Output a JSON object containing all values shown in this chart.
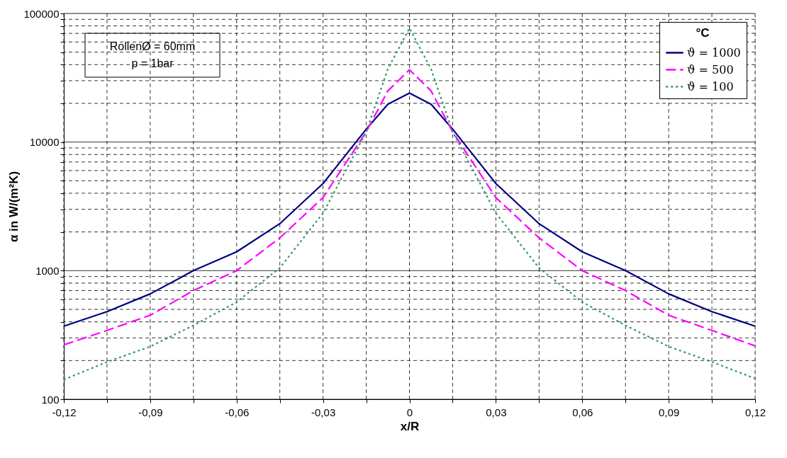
{
  "chart_data": {
    "type": "line",
    "xlabel": "x/R",
    "ylabel": "α in W/(m²K)",
    "legend_title": "°C",
    "legend": "top right",
    "log": true,
    "grid": true,
    "annotations": [
      "RollenØ = 60mm",
      "p = 1bar"
    ],
    "x": [
      -0.12,
      -0.105,
      -0.09,
      -0.075,
      -0.06,
      -0.045,
      -0.03,
      -0.015,
      -0.0075,
      0,
      0.0075,
      0.015,
      0.03,
      0.045,
      0.06,
      0.075,
      0.09,
      0.105,
      0.12
    ],
    "xlim": [
      -0.12,
      0.12
    ],
    "xticks": [
      {
        "value": -0.12,
        "label": "-0,12"
      },
      {
        "value": -0.105,
        "label": null
      },
      {
        "value": -0.09,
        "label": "-0,09"
      },
      {
        "value": -0.075,
        "label": null
      },
      {
        "value": -0.06,
        "label": "-0,06"
      },
      {
        "value": -0.045,
        "label": null
      },
      {
        "value": -0.03,
        "label": "-0,03"
      },
      {
        "value": -0.015,
        "label": null
      },
      0,
      {
        "value": 0.015,
        "label": null
      },
      {
        "value": 0.03,
        "label": "0,03"
      },
      {
        "value": 0.045,
        "label": null
      },
      {
        "value": 0.06,
        "label": "0,06"
      },
      {
        "value": 0.075,
        "label": null
      },
      {
        "value": 0.09,
        "label": "0,09"
      },
      {
        "value": 0.105,
        "label": null
      },
      {
        "value": 0.12,
        "label": "0,12"
      }
    ],
    "ylim": [
      100,
      100000
    ],
    "yticks": [
      100,
      {
        "value": 200,
        "label": null
      },
      {
        "value": 300,
        "label": null
      },
      {
        "value": 400,
        "label": null
      },
      {
        "value": 500,
        "label": null
      },
      {
        "value": 600,
        "label": null
      },
      {
        "value": 700,
        "label": null
      },
      {
        "value": 800,
        "label": null
      },
      {
        "value": 900,
        "label": null
      },
      1000,
      {
        "value": 2000,
        "label": null
      },
      {
        "value": 3000,
        "label": null
      },
      {
        "value": 4000,
        "label": null
      },
      {
        "value": 5000,
        "label": null
      },
      {
        "value": 6000,
        "label": null
      },
      {
        "value": 7000,
        "label": null
      },
      {
        "value": 8000,
        "label": null
      },
      {
        "value": 9000,
        "label": null
      },
      10000,
      {
        "value": 20000,
        "label": null
      },
      {
        "value": 30000,
        "label": null
      },
      {
        "value": 40000,
        "label": null
      },
      {
        "value": 50000,
        "label": null
      },
      {
        "value": 60000,
        "label": null
      },
      {
        "value": 70000,
        "label": null
      },
      {
        "value": 80000,
        "label": null
      },
      {
        "value": 90000,
        "label": null
      },
      100000
    ],
    "series": [
      {
        "name": "ϑ = 1000",
        "color": "#000080",
        "line_style": "solid",
        "values": [
          370,
          480,
          660,
          1000,
          1400,
          2320,
          4760,
          12600,
          19700,
          24000,
          19700,
          12600,
          4760,
          2320,
          1400,
          1000,
          660,
          480,
          370
        ]
      },
      {
        "name": "ϑ = 500",
        "color": "#ff00ff",
        "line_style": "dashed",
        "values": [
          265,
          343,
          450,
          700,
          1000,
          1800,
          3700,
          12000,
          25000,
          36500,
          25000,
          12000,
          3700,
          1800,
          1000,
          700,
          450,
          343,
          260
        ]
      },
      {
        "name": "ϑ = 100",
        "color": "#339966",
        "line_style": "dotted",
        "values": [
          142,
          195,
          257,
          375,
          570,
          1050,
          2800,
          12000,
          37000,
          76800,
          37000,
          12000,
          2800,
          1050,
          570,
          375,
          257,
          195,
          145
        ]
      }
    ]
  }
}
